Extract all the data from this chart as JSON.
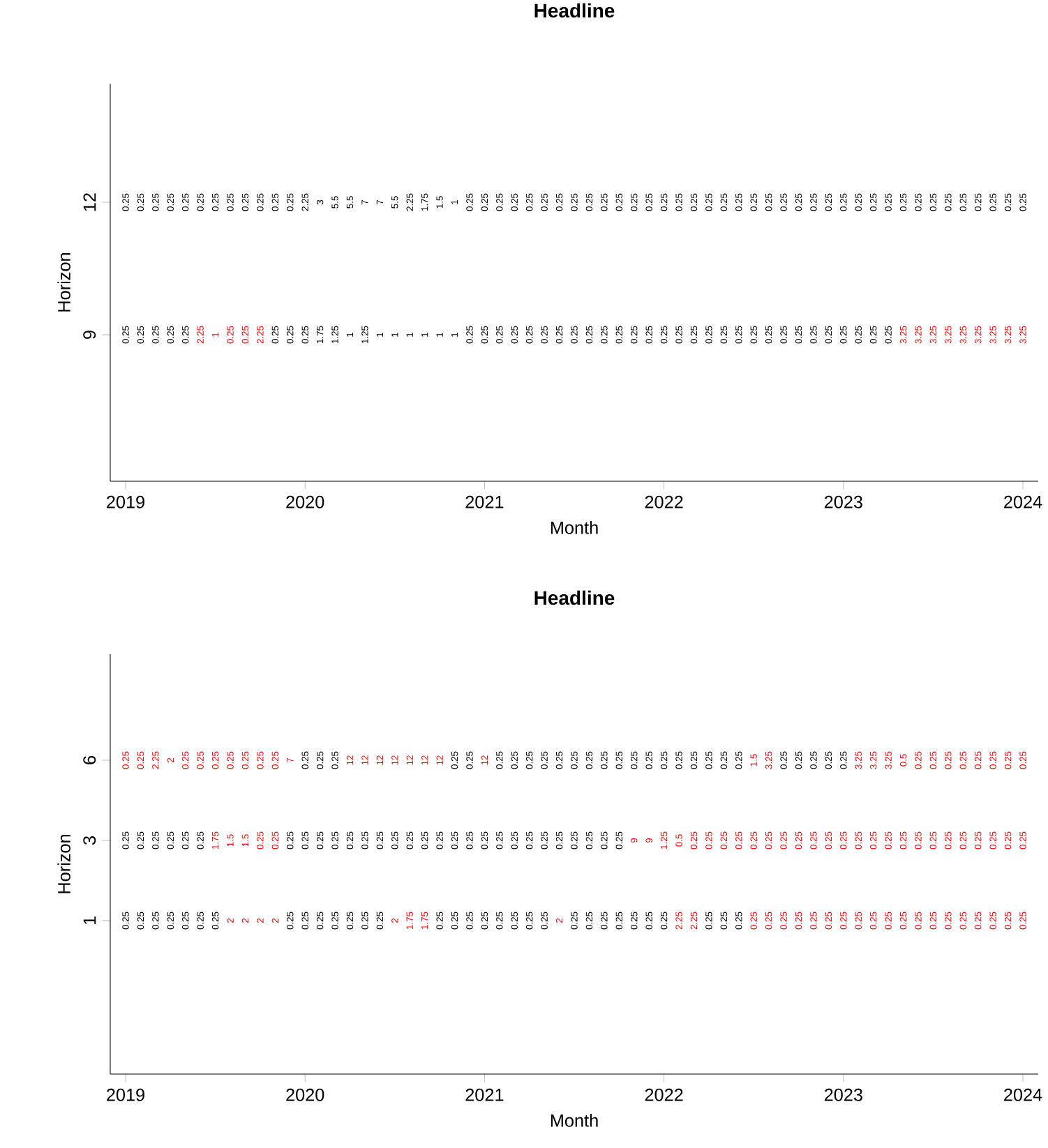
{
  "chart_data": [
    {
      "type": "heatmap",
      "title": "Headline",
      "xlabel": "Month",
      "ylabel": "Horizon",
      "data_labels": true,
      "categories": [
        "2019",
        null,
        null,
        null,
        null,
        null,
        null,
        null,
        null,
        null,
        null,
        null,
        "2020",
        null,
        null,
        null,
        null,
        null,
        null,
        null,
        null,
        null,
        null,
        null,
        "2021",
        null,
        null,
        null,
        null,
        null,
        null,
        null,
        null,
        null,
        null,
        null,
        "2022",
        null,
        null,
        null,
        null,
        null,
        null,
        null,
        null,
        null,
        null,
        null,
        "2023",
        null,
        null,
        null,
        null,
        null,
        null,
        null,
        null,
        null,
        null,
        null,
        "2024"
      ],
      "y_categories": [
        "12",
        "9"
      ],
      "cells": [
        [
          0.25,
          0.25,
          0.25,
          0.25,
          0.25,
          0.25,
          0.25,
          0.25,
          0.25,
          0.25,
          0.25,
          0.25,
          2.25,
          3,
          5.5,
          5.5,
          7,
          7,
          5.5,
          2.25,
          1.75,
          1.5,
          1,
          0.25,
          0.25,
          0.25,
          0.25,
          0.25,
          0.25,
          0.25,
          0.25,
          0.25,
          0.25,
          0.25,
          0.25,
          0.25,
          0.25,
          0.25,
          0.25,
          0.25,
          0.25,
          0.25,
          0.25,
          0.25,
          0.25,
          0.25,
          0.25,
          0.25,
          0.25,
          0.25,
          0.25,
          0.25,
          0.25,
          0.25,
          0.25,
          0.25,
          0.25,
          0.25,
          0.25,
          0.25,
          0.25
        ],
        [
          0.25,
          0.25,
          0.25,
          0.25,
          0.25,
          2.25,
          1,
          0.25,
          0.25,
          2.25,
          0.25,
          0.25,
          0.25,
          1.75,
          1.25,
          1,
          1.25,
          1,
          1,
          1,
          1,
          1,
          1,
          0.25,
          0.25,
          0.25,
          0.25,
          0.25,
          0.25,
          0.25,
          0.25,
          0.25,
          0.25,
          0.25,
          0.25,
          0.25,
          0.25,
          0.25,
          0.25,
          0.25,
          0.25,
          0.25,
          0.25,
          0.25,
          0.25,
          0.25,
          0.25,
          0.25,
          0.25,
          0.25,
          0.25,
          0.25,
          3.25,
          3.25,
          3.25,
          3.25,
          3.25,
          3.25,
          3.25,
          3.25,
          3.25
        ]
      ],
      "colors": [
        [
          "#000000",
          "#000000",
          "#000000",
          "#000000",
          "#000000",
          "#000000",
          "#000000",
          "#000000",
          "#000000",
          "#000000",
          "#000000",
          "#000000",
          "#000000",
          "#000000",
          "#000000",
          "#000000",
          "#000000",
          "#000000",
          "#000000",
          "#000000",
          "#000000",
          "#000000",
          "#000000",
          "#000000",
          "#000000",
          "#000000",
          "#000000",
          "#000000",
          "#000000",
          "#000000",
          "#000000",
          "#000000",
          "#000000",
          "#000000",
          "#000000",
          "#000000",
          "#000000",
          "#000000",
          "#000000",
          "#000000",
          "#000000",
          "#000000",
          "#000000",
          "#000000",
          "#000000",
          "#000000",
          "#000000",
          "#000000",
          "#000000",
          "#000000",
          "#000000",
          "#000000",
          "#000000",
          "#000000",
          "#000000",
          "#000000",
          "#000000",
          "#000000",
          "#000000",
          "#000000",
          "#000000"
        ],
        [
          "#000000",
          "#000000",
          "#000000",
          "#000000",
          "#000000",
          "#ff0000",
          "#ff0000",
          "#ff0000",
          "#ff0000",
          "#ff0000",
          "#000000",
          "#000000",
          "#000000",
          "#000000",
          "#000000",
          "#000000",
          "#000000",
          "#000000",
          "#000000",
          "#000000",
          "#000000",
          "#000000",
          "#000000",
          "#000000",
          "#000000",
          "#000000",
          "#000000",
          "#000000",
          "#000000",
          "#000000",
          "#000000",
          "#000000",
          "#000000",
          "#000000",
          "#000000",
          "#000000",
          "#000000",
          "#000000",
          "#000000",
          "#000000",
          "#000000",
          "#000000",
          "#000000",
          "#000000",
          "#000000",
          "#000000",
          "#000000",
          "#000000",
          "#000000",
          "#000000",
          "#000000",
          "#000000",
          "#ff0000",
          "#ff0000",
          "#ff0000",
          "#ff0000",
          "#ff0000",
          "#ff0000",
          "#ff0000",
          "#ff0000",
          "#ff0000"
        ]
      ]
    },
    {
      "type": "heatmap",
      "title": "Headline",
      "xlabel": "Month",
      "ylabel": "Horizon",
      "data_labels": true,
      "categories": [
        "2019",
        null,
        null,
        null,
        null,
        null,
        null,
        null,
        null,
        null,
        null,
        null,
        "2020",
        null,
        null,
        null,
        null,
        null,
        null,
        null,
        null,
        null,
        null,
        null,
        "2021",
        null,
        null,
        null,
        null,
        null,
        null,
        null,
        null,
        null,
        null,
        null,
        "2022",
        null,
        null,
        null,
        null,
        null,
        null,
        null,
        null,
        null,
        null,
        null,
        "2023",
        null,
        null,
        null,
        null,
        null,
        null,
        null,
        null,
        null,
        null,
        null,
        "2024"
      ],
      "y_categories": [
        "6",
        "3",
        "1"
      ],
      "cells": [
        [
          0.25,
          0.25,
          2.25,
          2,
          0.25,
          0.25,
          0.25,
          0.25,
          0.25,
          0.25,
          0.25,
          7,
          0.25,
          0.25,
          0.25,
          12,
          12,
          12,
          12,
          12,
          12,
          12,
          0.25,
          0.25,
          12,
          0.25,
          0.25,
          0.25,
          0.25,
          0.25,
          0.25,
          0.25,
          0.25,
          0.25,
          0.25,
          0.25,
          0.25,
          0.25,
          0.25,
          0.25,
          0.25,
          0.25,
          1.5,
          3.25,
          0.25,
          0.25,
          0.25,
          0.25,
          0.25,
          3.25,
          3.25,
          3.25,
          0.5,
          0.25,
          0.25,
          0.25,
          0.25,
          0.25,
          0.25,
          0.25,
          0.25
        ],
        [
          0.25,
          0.25,
          0.25,
          0.25,
          0.25,
          0.25,
          1.75,
          1.5,
          1.5,
          0.25,
          0.25,
          0.25,
          0.25,
          0.25,
          0.25,
          0.25,
          0.25,
          0.25,
          0.25,
          0.25,
          0.25,
          0.25,
          0.25,
          0.25,
          0.25,
          0.25,
          0.25,
          0.25,
          0.25,
          0.25,
          0.25,
          0.25,
          0.25,
          0.25,
          9,
          9,
          1.25,
          0.5,
          0.25,
          0.25,
          0.25,
          0.25,
          0.25,
          0.25,
          0.25,
          0.25,
          0.25,
          0.25,
          0.25,
          0.25,
          0.25,
          0.25,
          0.25,
          0.25,
          0.25,
          0.25,
          0.25,
          0.25,
          0.25,
          0.25,
          0.25
        ],
        [
          0.25,
          0.25,
          0.25,
          0.25,
          0.25,
          0.25,
          0.25,
          2,
          2,
          2,
          2,
          0.25,
          0.25,
          0.25,
          0.25,
          0.25,
          0.25,
          0.25,
          2,
          1.75,
          1.75,
          0.25,
          0.25,
          0.25,
          0.25,
          0.25,
          0.25,
          0.25,
          0.25,
          2,
          0.25,
          0.25,
          0.25,
          0.25,
          0.25,
          0.25,
          0.25,
          2.25,
          2.25,
          0.25,
          0.25,
          0.25,
          0.25,
          0.25,
          0.25,
          0.25,
          0.25,
          0.25,
          0.25,
          0.25,
          0.25,
          0.25,
          0.25,
          0.25,
          0.25,
          0.25,
          0.25,
          0.25,
          0.25,
          0.25,
          0.25
        ]
      ],
      "colors": [
        [
          "#ff0000",
          "#ff0000",
          "#ff0000",
          "#ff0000",
          "#ff0000",
          "#ff0000",
          "#ff0000",
          "#ff0000",
          "#ff0000",
          "#ff0000",
          "#ff0000",
          "#ff0000",
          "#000000",
          "#000000",
          "#000000",
          "#ff0000",
          "#ff0000",
          "#ff0000",
          "#ff0000",
          "#ff0000",
          "#ff0000",
          "#ff0000",
          "#000000",
          "#000000",
          "#ff0000",
          "#000000",
          "#000000",
          "#000000",
          "#000000",
          "#000000",
          "#000000",
          "#000000",
          "#000000",
          "#000000",
          "#000000",
          "#000000",
          "#000000",
          "#000000",
          "#000000",
          "#000000",
          "#000000",
          "#000000",
          "#ff0000",
          "#ff0000",
          "#000000",
          "#000000",
          "#000000",
          "#000000",
          "#000000",
          "#ff0000",
          "#ff0000",
          "#ff0000",
          "#ff0000",
          "#ff0000",
          "#ff0000",
          "#ff0000",
          "#ff0000",
          "#ff0000",
          "#ff0000",
          "#ff0000",
          "#ff0000"
        ],
        [
          "#000000",
          "#000000",
          "#000000",
          "#000000",
          "#000000",
          "#000000",
          "#ff0000",
          "#ff0000",
          "#ff0000",
          "#ff0000",
          "#ff0000",
          "#000000",
          "#000000",
          "#000000",
          "#000000",
          "#000000",
          "#000000",
          "#000000",
          "#000000",
          "#000000",
          "#000000",
          "#000000",
          "#000000",
          "#000000",
          "#000000",
          "#000000",
          "#000000",
          "#000000",
          "#000000",
          "#000000",
          "#000000",
          "#000000",
          "#000000",
          "#000000",
          "#ff0000",
          "#ff0000",
          "#ff0000",
          "#ff0000",
          "#ff0000",
          "#ff0000",
          "#ff0000",
          "#ff0000",
          "#ff0000",
          "#ff0000",
          "#ff0000",
          "#ff0000",
          "#ff0000",
          "#ff0000",
          "#ff0000",
          "#ff0000",
          "#ff0000",
          "#ff0000",
          "#ff0000",
          "#ff0000",
          "#ff0000",
          "#ff0000",
          "#ff0000",
          "#ff0000",
          "#ff0000",
          "#ff0000",
          "#ff0000"
        ],
        [
          "#000000",
          "#000000",
          "#000000",
          "#000000",
          "#000000",
          "#000000",
          "#000000",
          "#ff0000",
          "#ff0000",
          "#ff0000",
          "#ff0000",
          "#000000",
          "#000000",
          "#000000",
          "#000000",
          "#000000",
          "#000000",
          "#000000",
          "#ff0000",
          "#ff0000",
          "#ff0000",
          "#000000",
          "#000000",
          "#000000",
          "#000000",
          "#000000",
          "#000000",
          "#000000",
          "#000000",
          "#ff0000",
          "#000000",
          "#000000",
          "#000000",
          "#000000",
          "#000000",
          "#000000",
          "#000000",
          "#ff0000",
          "#ff0000",
          "#000000",
          "#000000",
          "#000000",
          "#ff0000",
          "#ff0000",
          "#ff0000",
          "#ff0000",
          "#ff0000",
          "#ff0000",
          "#ff0000",
          "#ff0000",
          "#ff0000",
          "#ff0000",
          "#ff0000",
          "#ff0000",
          "#ff0000",
          "#ff0000",
          "#ff0000",
          "#ff0000",
          "#ff0000",
          "#ff0000",
          "#ff0000"
        ]
      ]
    }
  ]
}
